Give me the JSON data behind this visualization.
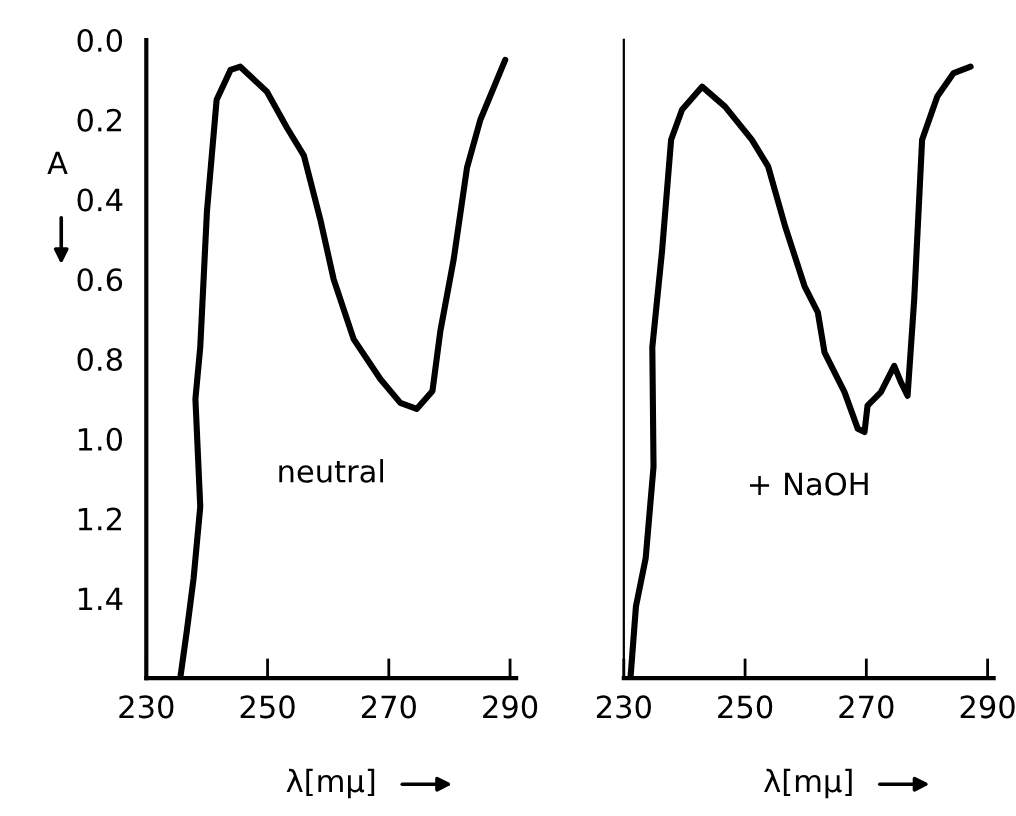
{
  "chart_data": [
    {
      "type": "line",
      "xlabel": "λ[mμ]",
      "ylabel": "A",
      "annotations": [
        "neutral"
      ],
      "x": [
        235.6,
        236.7,
        237.8,
        238.9,
        238.1,
        238.9,
        240,
        241.6,
        243.9,
        245.5,
        249.9,
        253.2,
        256,
        258.7,
        260.9,
        264.2,
        268.6,
        271.9,
        274.6,
        277.2,
        278.5,
        280.7,
        282.9,
        285.1,
        289.2
      ],
      "series": [
        {
          "color": "#000000",
          "values": [
            1.6,
            1.48,
            1.35,
            1.17,
            0.9,
            0.77,
            0.43,
            0.15,
            0.075,
            0.067,
            0.13,
            0.22,
            0.29,
            0.45,
            0.6,
            0.75,
            0.85,
            0.91,
            0.925,
            0.88,
            0.73,
            0.55,
            0.32,
            0.2,
            0.05
          ]
        }
      ],
      "xlim": [
        230,
        291
      ],
      "ylim": [
        1.6,
        0
      ],
      "xticks": [
        230,
        250,
        270,
        290
      ],
      "yticks": [
        {
          "value": 0,
          "label": "0.0"
        },
        0.2,
        0.4,
        0.6,
        0.8,
        {
          "value": 1,
          "label": "1.0"
        },
        1.2,
        1.4
      ],
      "grid": false,
      "legend": false
    },
    {
      "type": "line",
      "xlabel": "λ[mμ]",
      "annotations": [
        "+ NaOH"
      ],
      "x": [
        231.1,
        232.0,
        233.6,
        234.9,
        234.7,
        236.3,
        237.8,
        239.6,
        242.9,
        246.7,
        251.1,
        253.8,
        256.6,
        259.8,
        262.0,
        263.1,
        266.4,
        268.6,
        269.7,
        270.2,
        272.4,
        274.6,
        275.7,
        276.8,
        277.9,
        279.2,
        281.7,
        284.4,
        287.2
      ],
      "series": [
        {
          "color": "#000000",
          "values": [
            1.6,
            1.42,
            1.3,
            1.07,
            0.77,
            0.53,
            0.25,
            0.175,
            0.117,
            0.167,
            0.25,
            0.317,
            0.467,
            0.617,
            0.683,
            0.783,
            0.883,
            0.975,
            0.983,
            0.917,
            0.883,
            0.817,
            0.858,
            0.892,
            0.65,
            0.25,
            0.142,
            0.083,
            0.067
          ]
        }
      ],
      "xlim": [
        230,
        291
      ],
      "ylim": [
        1.6,
        0
      ],
      "xticks": [
        230,
        250,
        270,
        290
      ],
      "tick_labels": "x",
      "grid": false,
      "legend": false
    }
  ]
}
